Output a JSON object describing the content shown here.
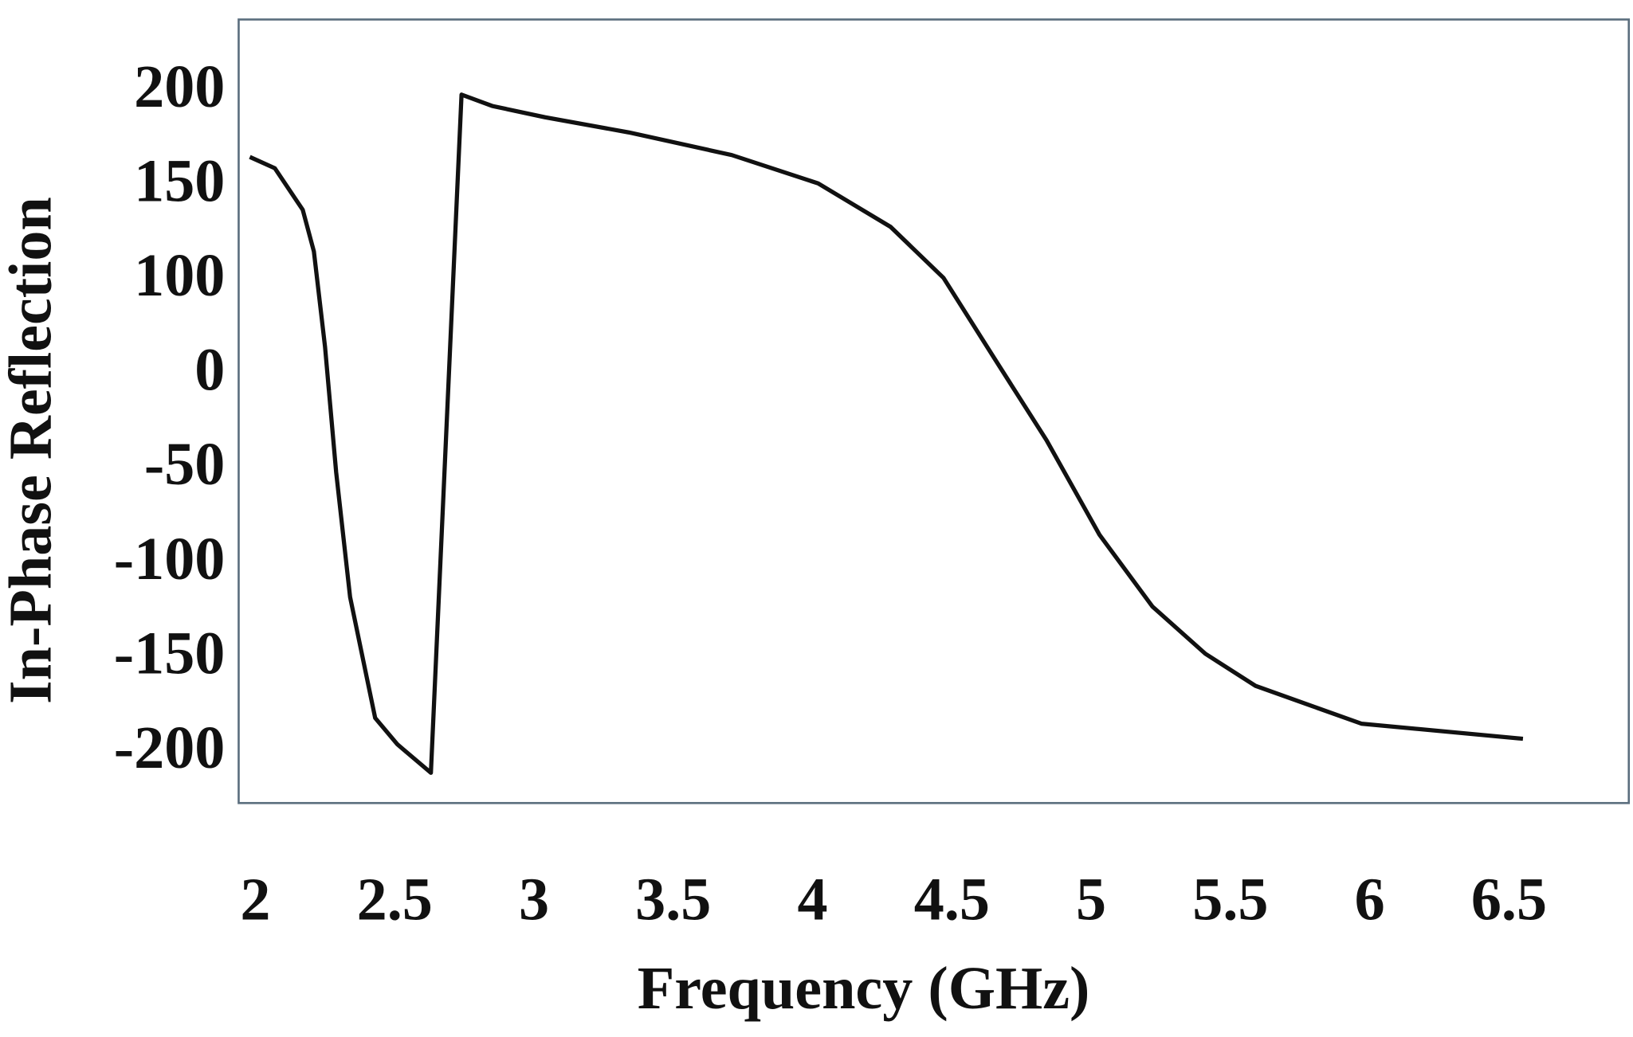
{
  "chart_data": {
    "type": "line",
    "xlabel": "Frequency (GHz)",
    "ylabel": "In-Phase Reflection",
    "x": [
      1.98,
      2.07,
      2.17,
      2.21,
      2.25,
      2.29,
      2.34,
      2.43,
      2.51,
      2.63,
      2.74,
      2.85,
      3.04,
      3.34,
      3.71,
      4.02,
      4.28,
      4.47,
      4.65,
      4.84,
      5.03,
      5.22,
      5.41,
      5.59,
      5.97,
      6.55
    ],
    "series": [
      {
        "color": "#111111",
        "values": [
          166,
          160,
          138,
          116,
          31,
          -51,
          -117,
          -181,
          -195,
          -210,
          199,
          193,
          187,
          179,
          167,
          152,
          129,
          102,
          20,
          -34,
          -84,
          -122,
          -147,
          -164,
          -184,
          -192
        ]
      }
    ],
    "xlim": [
      1.94,
      6.93
    ],
    "xticks": [
      2,
      2.5,
      3,
      3.5,
      4,
      4.5,
      5,
      5.5,
      6,
      6.5
    ],
    "ylim": [
      -226,
      239
    ],
    "yticks": [
      200,
      150,
      100,
      0,
      -50,
      -100,
      -150,
      -200
    ],
    "grid": false
  }
}
